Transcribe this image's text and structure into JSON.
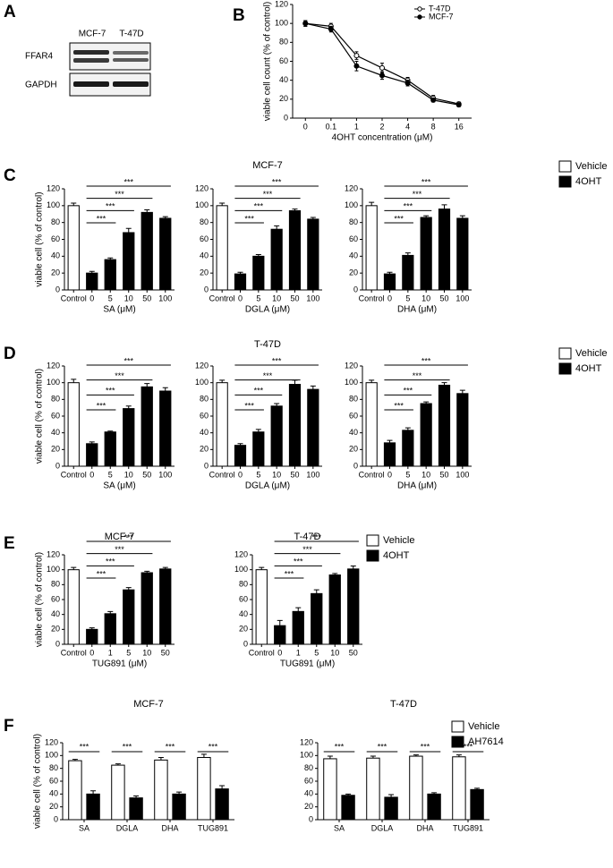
{
  "panel_labels": [
    "A",
    "B",
    "C",
    "D",
    "E",
    "F"
  ],
  "blot": {
    "columns": [
      "MCF-7",
      "T-47D"
    ],
    "rows": [
      "FFAR4",
      "GAPDH"
    ]
  },
  "chart_data": [
    {
      "type": "line",
      "categories": [
        "0",
        "0.1",
        "1",
        "2",
        "4",
        "8",
        "16"
      ],
      "xlabel": "4OHT concentration (μM)",
      "ylabel": "viable cell count (% of control)",
      "ylim": [
        0,
        120
      ],
      "yticks": [
        0,
        20,
        40,
        60,
        80,
        100,
        120
      ],
      "legend": "upper right",
      "series": [
        {
          "name": "T-47D",
          "color": "#000000",
          "marker_fill": "#ffffff",
          "values": [
            100,
            97,
            66,
            53,
            40,
            21,
            15
          ],
          "errors": [
            3,
            3,
            4,
            5,
            3,
            3,
            2
          ]
        },
        {
          "name": "MCF-7",
          "color": "#000000",
          "marker_fill": "#000000",
          "values": [
            100,
            94,
            55,
            45,
            37,
            19,
            14
          ],
          "errors": [
            3,
            3,
            5,
            4,
            3,
            2,
            2
          ]
        }
      ]
    },
    {
      "type": "bar",
      "categories": [
        "Control",
        "0",
        "5",
        "10",
        "50",
        "100"
      ],
      "xlabel": "SA (μM)",
      "ylabel": "viable cell (% of control)",
      "ylim": [
        0,
        120
      ],
      "yticks": [
        0,
        20,
        40,
        60,
        80,
        100,
        120
      ],
      "significance": [
        "***",
        "***",
        "***",
        "***"
      ],
      "series": [
        {
          "name": "Vehicle",
          "color": "#ffffff",
          "values": [
            100,
            null,
            null,
            null,
            null,
            null
          ],
          "errors": [
            3,
            null,
            null,
            null,
            null,
            null
          ]
        },
        {
          "name": "4OHT",
          "color": "#000000",
          "values": [
            null,
            20,
            36,
            68,
            92,
            85
          ],
          "errors": [
            null,
            2,
            2,
            5,
            3,
            2
          ]
        }
      ]
    },
    {
      "type": "bar",
      "title": "MCF-7",
      "categories": [
        "Control",
        "0",
        "5",
        "10",
        "50",
        "100"
      ],
      "xlabel": "DGLA (μM)",
      "ylim": [
        0,
        120
      ],
      "yticks": [
        0,
        20,
        40,
        60,
        80,
        100,
        120
      ],
      "significance": [
        "***",
        "***",
        "***",
        "***"
      ],
      "series": [
        {
          "name": "Vehicle",
          "color": "#ffffff",
          "values": [
            100,
            null,
            null,
            null,
            null,
            null
          ],
          "errors": [
            3,
            null,
            null,
            null,
            null,
            null
          ]
        },
        {
          "name": "4OHT",
          "color": "#000000",
          "values": [
            null,
            19,
            40,
            72,
            94,
            84
          ],
          "errors": [
            null,
            2,
            2,
            4,
            2,
            2
          ]
        }
      ]
    },
    {
      "type": "bar",
      "categories": [
        "Control",
        "0",
        "5",
        "10",
        "50",
        "100"
      ],
      "xlabel": "DHA (μM)",
      "ylim": [
        0,
        120
      ],
      "yticks": [
        0,
        20,
        40,
        60,
        80,
        100,
        120
      ],
      "significance": [
        "***",
        "***",
        "***",
        "***"
      ],
      "legend": "right",
      "series": [
        {
          "name": "Vehicle",
          "color": "#ffffff",
          "values": [
            100,
            null,
            null,
            null,
            null,
            null
          ],
          "errors": [
            4,
            null,
            null,
            null,
            null,
            null
          ]
        },
        {
          "name": "4OHT",
          "color": "#000000",
          "values": [
            null,
            19,
            41,
            86,
            96,
            85
          ],
          "errors": [
            null,
            2,
            3,
            2,
            5,
            3
          ]
        }
      ]
    },
    {
      "type": "bar",
      "categories": [
        "Control",
        "0",
        "5",
        "10",
        "50",
        "100"
      ],
      "xlabel": "SA (μM)",
      "ylabel": "viable cell (% of control)",
      "ylim": [
        0,
        120
      ],
      "yticks": [
        0,
        20,
        40,
        60,
        80,
        100,
        120
      ],
      "significance": [
        "***",
        "***",
        "***",
        "***"
      ],
      "series": [
        {
          "name": "Vehicle",
          "color": "#ffffff",
          "values": [
            100,
            null,
            null,
            null,
            null,
            null
          ],
          "errors": [
            4,
            null,
            null,
            null,
            null,
            null
          ]
        },
        {
          "name": "4OHT",
          "color": "#000000",
          "values": [
            null,
            27,
            41,
            69,
            95,
            90
          ],
          "errors": [
            null,
            2,
            1,
            3,
            4,
            4
          ]
        }
      ]
    },
    {
      "type": "bar",
      "title": "T-47D",
      "categories": [
        "Control",
        "0",
        "5",
        "10",
        "50",
        "100"
      ],
      "xlabel": "DGLA (μM)",
      "ylim": [
        0,
        120
      ],
      "yticks": [
        0,
        20,
        40,
        60,
        80,
        100,
        120
      ],
      "significance": [
        "***",
        "***",
        "***",
        "***"
      ],
      "series": [
        {
          "name": "Vehicle",
          "color": "#ffffff",
          "values": [
            100,
            null,
            null,
            null,
            null,
            null
          ],
          "errors": [
            3,
            null,
            null,
            null,
            null,
            null
          ]
        },
        {
          "name": "4OHT",
          "color": "#000000",
          "values": [
            null,
            25,
            41,
            72,
            98,
            92
          ],
          "errors": [
            null,
            2,
            3,
            3,
            5,
            4
          ]
        }
      ]
    },
    {
      "type": "bar",
      "categories": [
        "Control",
        "0",
        "5",
        "10",
        "50",
        "100"
      ],
      "xlabel": "DHA (μM)",
      "ylim": [
        0,
        120
      ],
      "yticks": [
        0,
        20,
        40,
        60,
        80,
        100,
        120
      ],
      "significance": [
        "***",
        "***",
        "***",
        "***"
      ],
      "legend": "right",
      "series": [
        {
          "name": "Vehicle",
          "color": "#ffffff",
          "values": [
            100,
            null,
            null,
            null,
            null,
            null
          ],
          "errors": [
            3,
            null,
            null,
            null,
            null,
            null
          ]
        },
        {
          "name": "4OHT",
          "color": "#000000",
          "values": [
            null,
            28,
            43,
            75,
            97,
            87
          ],
          "errors": [
            null,
            3,
            3,
            2,
            3,
            4
          ]
        }
      ]
    },
    {
      "type": "bar",
      "title": "MCF-7",
      "categories": [
        "Control",
        "0",
        "1",
        "5",
        "10",
        "50"
      ],
      "xlabel": "TUG891 (μM)",
      "ylabel": "viable cell (% of control)",
      "ylim": [
        0,
        120
      ],
      "yticks": [
        0,
        20,
        40,
        60,
        80,
        100,
        120
      ],
      "significance": [
        "***",
        "***",
        "***",
        "***"
      ],
      "series": [
        {
          "name": "Vehicle",
          "color": "#ffffff",
          "values": [
            100,
            null,
            null,
            null,
            null,
            null
          ],
          "errors": [
            3,
            null,
            null,
            null,
            null,
            null
          ]
        },
        {
          "name": "4OHT",
          "color": "#000000",
          "values": [
            null,
            20,
            41,
            73,
            96,
            101
          ],
          "errors": [
            null,
            2,
            3,
            3,
            2,
            2
          ]
        }
      ]
    },
    {
      "type": "bar",
      "title": "T-47D",
      "categories": [
        "Control",
        "0",
        "1",
        "5",
        "10",
        "50"
      ],
      "xlabel": "TUG891 (μM)",
      "ylim": [
        0,
        120
      ],
      "yticks": [
        0,
        20,
        40,
        60,
        80,
        100,
        120
      ],
      "significance": [
        "***",
        "***",
        "***",
        "***"
      ],
      "legend": "right",
      "series": [
        {
          "name": "Vehicle",
          "color": "#ffffff",
          "values": [
            100,
            null,
            null,
            null,
            null,
            null
          ],
          "errors": [
            3,
            null,
            null,
            null,
            null,
            null
          ]
        },
        {
          "name": "4OHT",
          "color": "#000000",
          "values": [
            null,
            25,
            44,
            68,
            93,
            101
          ],
          "errors": [
            null,
            7,
            5,
            5,
            2,
            4
          ]
        }
      ]
    },
    {
      "type": "groupedbar",
      "title": "MCF-7",
      "categories": [
        "SA",
        "DGLA",
        "DHA",
        "TUG891"
      ],
      "ylabel": "viable cell (% of control)",
      "ylim": [
        0,
        120
      ],
      "yticks": [
        0,
        20,
        40,
        60,
        80,
        100,
        120
      ],
      "significance": [
        "***",
        "***",
        "***",
        "***"
      ],
      "series": [
        {
          "name": "Vehicle",
          "color": "#ffffff",
          "values": [
            92,
            85,
            93,
            97
          ],
          "errors": [
            2,
            2,
            4,
            5
          ]
        },
        {
          "name": "AH7614",
          "color": "#000000",
          "values": [
            40,
            34,
            40,
            48
          ],
          "errors": [
            5,
            3,
            3,
            5
          ]
        }
      ]
    },
    {
      "type": "groupedbar",
      "title": "T-47D",
      "categories": [
        "SA",
        "DGLA",
        "DHA",
        "TUG891"
      ],
      "ylim": [
        0,
        120
      ],
      "yticks": [
        0,
        20,
        40,
        60,
        80,
        100,
        120
      ],
      "significance": [
        "***",
        "***",
        "***",
        "***"
      ],
      "legend": "right",
      "series": [
        {
          "name": "Vehicle",
          "color": "#ffffff",
          "values": [
            95,
            96,
            99,
            98
          ],
          "errors": [
            4,
            3,
            2,
            3
          ]
        },
        {
          "name": "AH7614",
          "color": "#000000",
          "values": [
            38,
            35,
            40,
            47
          ],
          "errors": [
            2,
            4,
            2,
            2
          ]
        }
      ]
    }
  ]
}
